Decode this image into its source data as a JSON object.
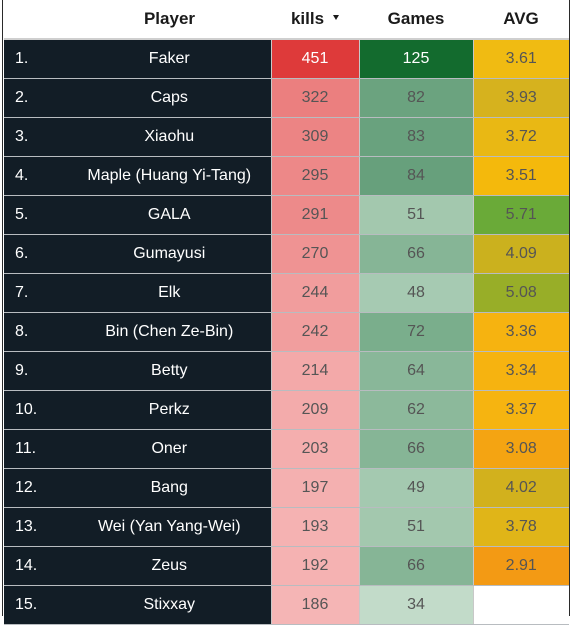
{
  "table": {
    "headers": {
      "player": "Player",
      "kills": "kills",
      "games": "Games",
      "avg": "AVG"
    },
    "sort_icon": "sort-descending-icon",
    "rows": [
      {
        "rank": "1.",
        "player": "Faker",
        "kills": "451",
        "games": "125",
        "avg": "3.61",
        "kills_color": "#de3a3a",
        "games_color": "#136b2e",
        "avg_color": "#f0bb12"
      },
      {
        "rank": "2.",
        "player": "Caps",
        "kills": "322",
        "games": "82",
        "avg": "3.93",
        "kills_color": "#eb7f7f",
        "games_color": "#6ba37f",
        "avg_color": "#d6b21e"
      },
      {
        "rank": "3.",
        "player": "Xiaohu",
        "kills": "309",
        "games": "83",
        "avg": "3.72",
        "kills_color": "#ec8484",
        "games_color": "#69a27e",
        "avg_color": "#e9b814"
      },
      {
        "rank": "4.",
        "player": "Maple (Huang Yi-Tang)",
        "kills": "295",
        "games": "84",
        "avg": "3.51",
        "kills_color": "#ed8888",
        "games_color": "#67a07c",
        "avg_color": "#f4b90c"
      },
      {
        "rank": "5.",
        "player": "GALA",
        "kills": "291",
        "games": "51",
        "avg": "5.71",
        "kills_color": "#ed8a8a",
        "games_color": "#a3c8ae",
        "avg_color": "#6aaa38"
      },
      {
        "rank": "6.",
        "player": "Gumayusi",
        "kills": "270",
        "games": "66",
        "avg": "4.09",
        "kills_color": "#ef9393",
        "games_color": "#86b596",
        "avg_color": "#cbb11e"
      },
      {
        "rank": "7.",
        "player": "Elk",
        "kills": "244",
        "games": "48",
        "avg": "5.08",
        "kills_color": "#f19d9d",
        "games_color": "#a6cab2",
        "avg_color": "#98ae28"
      },
      {
        "rank": "8.",
        "player": "Bin (Chen Ze-Bin)",
        "kills": "242",
        "games": "72",
        "avg": "3.36",
        "kills_color": "#f19e9e",
        "games_color": "#7aae8c",
        "avg_color": "#f6b310"
      },
      {
        "rank": "9.",
        "player": "Betty",
        "kills": "214",
        "games": "64",
        "avg": "3.34",
        "kills_color": "#f3a9a9",
        "games_color": "#89b799",
        "avg_color": "#f6b310"
      },
      {
        "rank": "10.",
        "player": "Perkz",
        "kills": "209",
        "games": "62",
        "avg": "3.37",
        "kills_color": "#f3abab",
        "games_color": "#8cb99b",
        "avg_color": "#f6b410"
      },
      {
        "rank": "11.",
        "player": "Oner",
        "kills": "203",
        "games": "66",
        "avg": "3.08",
        "kills_color": "#f4aeae",
        "games_color": "#86b596",
        "avg_color": "#f4a412"
      },
      {
        "rank": "12.",
        "player": "Bang",
        "kills": "197",
        "games": "49",
        "avg": "4.02",
        "kills_color": "#f4b0b0",
        "games_color": "#a4c9b0",
        "avg_color": "#d2b11d"
      },
      {
        "rank": "13.",
        "player": "Wei (Yan Yang-Wei)",
        "kills": "193",
        "games": "51",
        "avg": "3.78",
        "kills_color": "#f5b2b2",
        "games_color": "#a3c8ae",
        "avg_color": "#e0b518"
      },
      {
        "rank": "14.",
        "player": "Zeus",
        "kills": "192",
        "games": "66",
        "avg": "2.91",
        "kills_color": "#f5b2b2",
        "games_color": "#86b596",
        "avg_color": "#f39a14"
      },
      {
        "rank": "15.",
        "player": "Stixxay",
        "kills": "186",
        "games": "34",
        "avg": "",
        "kills_color": "#f5b5b5",
        "games_color": "#c2dbc9",
        "avg_color": "#ffffff"
      }
    ]
  }
}
